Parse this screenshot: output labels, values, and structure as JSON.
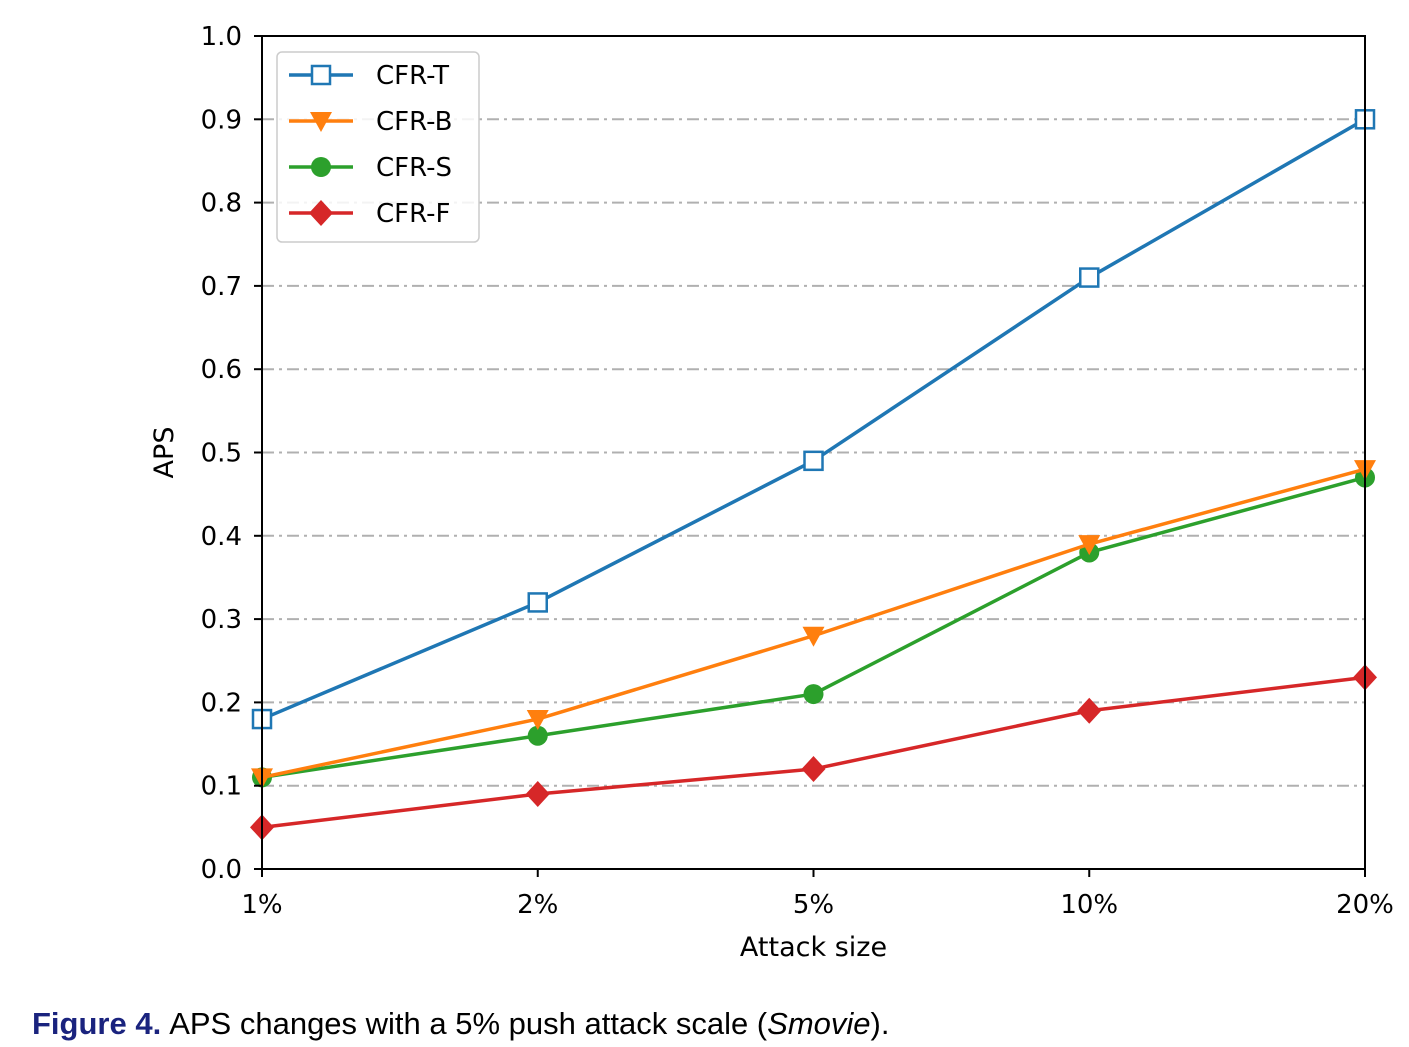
{
  "caption": {
    "figure_number": "Figure 4.",
    "text_before": "APS changes with a 5% push attack scale (",
    "dataset": "Smovie",
    "text_after": ")."
  },
  "colors": {
    "CFR-T": "#1f77b4",
    "CFR-B": "#ff7f0e",
    "CFR-S": "#2ca02c",
    "CFR-F": "#d62728",
    "grid": "#b0b0b0"
  },
  "chart_data": {
    "type": "line",
    "title": "",
    "xlabel": "Attack size",
    "ylabel": "APS",
    "categories": [
      "1%",
      "2%",
      "5%",
      "10%",
      "20%"
    ],
    "ylim": [
      0.0,
      1.0
    ],
    "yticks": [
      "0.0",
      "0.1",
      "0.2",
      "0.3",
      "0.4",
      "0.5",
      "0.6",
      "0.7",
      "0.8",
      "0.9",
      "1.0"
    ],
    "grid": "horizontal dash-dot",
    "legend_position": "top-left",
    "series": [
      {
        "name": "CFR-T",
        "marker": "open-square",
        "values": [
          0.18,
          0.32,
          0.49,
          0.71,
          0.9
        ]
      },
      {
        "name": "CFR-B",
        "marker": "triangle-down",
        "values": [
          0.11,
          0.18,
          0.28,
          0.39,
          0.48
        ]
      },
      {
        "name": "CFR-S",
        "marker": "circle",
        "values": [
          0.11,
          0.16,
          0.21,
          0.38,
          0.47
        ]
      },
      {
        "name": "CFR-F",
        "marker": "diamond",
        "values": [
          0.05,
          0.09,
          0.12,
          0.19,
          0.23
        ]
      }
    ]
  }
}
